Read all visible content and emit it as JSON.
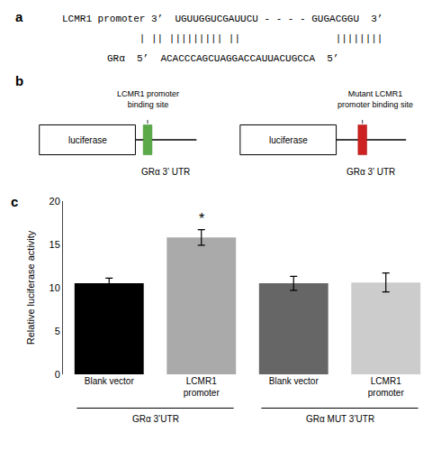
{
  "chart_data": {
    "type": "bar",
    "categories": [
      "Blank vector",
      "LCMR1\npromoter",
      "Blank vector",
      "LCMR1\npromoter"
    ],
    "values": [
      10.5,
      15.8,
      10.5,
      10.6
    ],
    "errors": [
      0.6,
      0.9,
      0.8,
      1.1
    ],
    "colors": [
      "#000000",
      "#aaaaaa",
      "#666666",
      "#cccccc"
    ],
    "ylabel": "Relative luciferase activity",
    "ylim": [
      0,
      20
    ],
    "yticks": [
      0,
      5,
      10,
      15,
      20
    ],
    "grid": false,
    "annotations": [
      {
        "text": "*",
        "category": 1
      },
      {
        "text": "GRα 3’UTR",
        "categories": [
          0,
          1
        ]
      },
      {
        "text": "GRα MUT 3’UTR",
        "categories": [
          2,
          3
        ]
      }
    ],
    "panels": [
      {
        "label": "a",
        "lines": [
          "LCMR1 promoter 3’  UGUUGGUCGAUUCU - - - - GUGACGGU  3’",
          "             | || ||||||||| ||                ||||||||",
          "GRα  5’  ACACCCAGCUAGGACCAUUACUGCCA  5’"
        ]
      },
      {
        "label": "b",
        "constructs": [
          {
            "box": "luciferase",
            "utr": "GRα 3’ UTR",
            "site": "LCMR1 promoter\nbinding site",
            "site_color": "#5aaa4a"
          },
          {
            "box": "luciferase",
            "utr": "GRα 3’ UTR",
            "site": "Mutant LCMR1\npromoter binding site",
            "site_color": "#cc2222"
          }
        ]
      },
      {
        "label": "c"
      }
    ]
  }
}
